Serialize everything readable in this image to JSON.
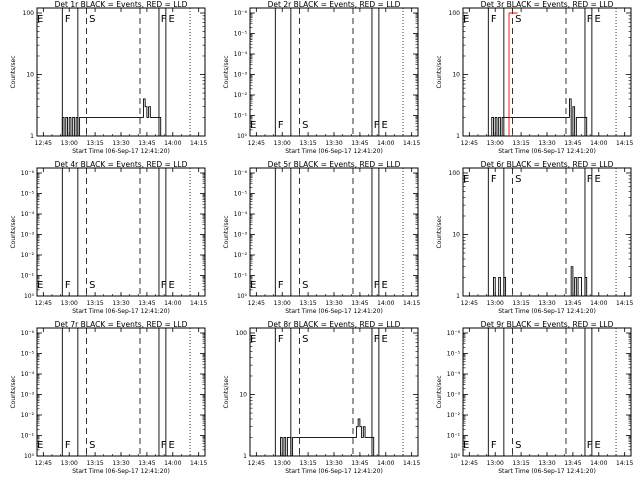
{
  "chart_data": [
    {
      "type": "line",
      "title": "Det 1r BLACK = Events, RED = LLD",
      "xlabel": "Start Time (06-Sep-17 12:41:20)",
      "ylabel": "Counts/sec",
      "x_ticks": [
        "12:45",
        "13:00",
        "13:15",
        "13:30",
        "13:45",
        "14:00",
        "14:15"
      ],
      "y_scale": "log",
      "y_ticks": [
        "1",
        "10",
        "100"
      ],
      "ylim": [
        1,
        100
      ],
      "markers": [
        "E",
        "F",
        "S",
        "F",
        "E"
      ],
      "series": [
        {
          "values": [
            [
              "12:56",
              2
            ],
            [
              "12:57",
              1
            ],
            [
              "12:58",
              2
            ],
            [
              "12:59",
              1
            ],
            [
              "13:00",
              2
            ],
            [
              "13:01",
              1
            ],
            [
              "13:02",
              2
            ],
            [
              "13:03",
              1
            ],
            [
              "13:04",
              2
            ],
            [
              "13:05",
              1
            ],
            [
              "13:06",
              2
            ],
            [
              "13:07",
              2
            ],
            [
              "13:42",
              2
            ],
            [
              "13:43",
              4
            ],
            [
              "13:44",
              3
            ],
            [
              "13:45",
              2
            ],
            [
              "13:46",
              3
            ],
            [
              "13:47",
              2
            ],
            [
              "13:48",
              2
            ],
            [
              "13:50",
              2
            ],
            [
              "13:52",
              2
            ],
            [
              "13:53",
              1
            ]
          ]
        }
      ]
    },
    {
      "type": "line",
      "title": "Det 2r BLACK = Events, RED = LLD",
      "xlabel": "Start Time (06-Sep-17 12:41:20)",
      "ylabel": "Counts/sec",
      "x_ticks": [
        "12:45",
        "13:00",
        "13:15",
        "13:30",
        "13:45",
        "14:00",
        "14:15"
      ],
      "y_scale": "log",
      "y_ticks": [
        "10⁰",
        "10⁻¹",
        "10⁻²",
        "10⁻³",
        "10⁻⁴",
        "10⁻⁵",
        "10⁻⁶"
      ],
      "ylim": [
        1,
        1e-06
      ],
      "markers": [
        "E",
        "F",
        "S",
        "F",
        "E"
      ],
      "series": []
    },
    {
      "type": "line",
      "title": "Det 3r BLACK = Events, RED = LLD",
      "xlabel": "Start Time (06-Sep-17 12:41:20)",
      "ylabel": "Counts/sec",
      "x_ticks": [
        "12:45",
        "13:00",
        "13:15",
        "13:30",
        "13:45",
        "14:00",
        "14:15"
      ],
      "y_scale": "log",
      "y_ticks": [
        "1",
        "10",
        "100"
      ],
      "ylim": [
        1,
        100
      ],
      "markers": [
        "E",
        "F",
        "S",
        "F",
        "E"
      ],
      "series": [
        {
          "values": [
            [
              "12:58",
              2
            ],
            [
              "12:59",
              1
            ],
            [
              "13:00",
              2
            ],
            [
              "13:01",
              1
            ],
            [
              "13:02",
              2
            ],
            [
              "13:03",
              1
            ],
            [
              "13:04",
              2
            ],
            [
              "13:42",
              2
            ],
            [
              "13:43",
              4
            ],
            [
              "13:44",
              1
            ],
            [
              "13:45",
              3
            ],
            [
              "13:46",
              1
            ],
            [
              "13:47",
              2
            ],
            [
              "13:49",
              2
            ],
            [
              "13:52",
              2
            ],
            [
              "13:53",
              1
            ]
          ]
        },
        {
          "color": "#ff0000",
          "values": [
            [
              "13:08",
              100
            ],
            [
              "13:12",
              100
            ]
          ]
        }
      ]
    },
    {
      "type": "line",
      "title": "Det 4r BLACK = Events, RED = LLD",
      "xlabel": "Start Time (06-Sep-17 12:41:20)",
      "ylabel": "Counts/sec",
      "x_ticks": [
        "12:45",
        "13:00",
        "13:15",
        "13:30",
        "13:45",
        "14:00",
        "14:15"
      ],
      "y_scale": "log",
      "y_ticks": [
        "10⁰",
        "10⁻¹",
        "10⁻²",
        "10⁻³",
        "10⁻⁴",
        "10⁻⁵",
        "10⁻⁶"
      ],
      "ylim": [
        1,
        1e-06
      ],
      "markers": [
        "E",
        "F",
        "S",
        "F",
        "E"
      ],
      "series": []
    },
    {
      "type": "line",
      "title": "Det 5r BLACK = Events, RED = LLD",
      "xlabel": "Start Time (06-Sep-17 12:41:20)",
      "ylabel": "Counts/sec",
      "x_ticks": [
        "12:45",
        "13:00",
        "13:15",
        "13:30",
        "13:45",
        "14:00",
        "14:15"
      ],
      "y_scale": "log",
      "y_ticks": [
        "10⁰",
        "10⁻¹",
        "10⁻²",
        "10⁻³",
        "10⁻⁴",
        "10⁻⁵",
        "10⁻⁶"
      ],
      "ylim": [
        1,
        1e-06
      ],
      "markers": [
        "E",
        "F",
        "S",
        "F",
        "E"
      ],
      "series": []
    },
    {
      "type": "line",
      "title": "Det 6r BLACK = Events, RED = LLD",
      "xlabel": "Start Time (06-Sep-17 12:41:20)",
      "ylabel": "Counts/sec",
      "x_ticks": [
        "12:45",
        "13:00",
        "13:15",
        "13:30",
        "13:45",
        "14:00",
        "14:15"
      ],
      "y_scale": "log",
      "y_ticks": [
        "1",
        "10",
        "100"
      ],
      "ylim": [
        1,
        100
      ],
      "markers": [
        "E",
        "F",
        "S",
        "F",
        "E"
      ],
      "series": [
        {
          "values": [
            [
              "12:58",
              1
            ],
            [
              "12:59",
              2
            ],
            [
              "13:00",
              1
            ],
            [
              "13:01",
              1
            ],
            [
              "13:02",
              2
            ],
            [
              "13:03",
              1
            ],
            [
              "13:05",
              2
            ],
            [
              "13:06",
              1
            ],
            [
              "13:43",
              1
            ],
            [
              "13:44",
              3
            ],
            [
              "13:45",
              1
            ],
            [
              "13:46",
              2
            ],
            [
              "13:47",
              1
            ],
            [
              "13:48",
              2
            ],
            [
              "13:50",
              1
            ],
            [
              "13:52",
              2
            ],
            [
              "13:53",
              1
            ]
          ]
        }
      ]
    },
    {
      "type": "line",
      "title": "Det 7r BLACK = Events, RED = LLD",
      "xlabel": "Start Time (06-Sep-17 12:41:20)",
      "ylabel": "Counts/sec",
      "x_ticks": [
        "12:45",
        "13:00",
        "13:15",
        "13:30",
        "13:45",
        "14:00",
        "14:15"
      ],
      "y_scale": "log",
      "y_ticks": [
        "10⁰",
        "10⁻¹",
        "10⁻²",
        "10⁻³",
        "10⁻⁴",
        "10⁻⁵",
        "10⁻⁶"
      ],
      "ylim": [
        1,
        1e-06
      ],
      "markers": [
        "E",
        "F",
        "S",
        "F",
        "E"
      ],
      "series": []
    },
    {
      "type": "line",
      "title": "Det 8r BLACK = Events, RED = LLD",
      "xlabel": "Start Time (06-Sep-17 12:41:20)",
      "ylabel": "Counts/sec",
      "x_ticks": [
        "12:45",
        "13:00",
        "13:15",
        "13:30",
        "13:45",
        "14:00",
        "14:15"
      ],
      "y_scale": "log",
      "y_ticks": [
        "1",
        "10",
        "100"
      ],
      "ylim": [
        1,
        100
      ],
      "markers": [
        "E",
        "F",
        "S",
        "F",
        "E"
      ],
      "series": [
        {
          "values": [
            [
              "12:58",
              1
            ],
            [
              "12:59",
              2
            ],
            [
              "13:00",
              1
            ],
            [
              "13:01",
              2
            ],
            [
              "13:02",
              1
            ],
            [
              "13:03",
              2
            ],
            [
              "13:04",
              2
            ],
            [
              "13:05",
              1
            ],
            [
              "13:06",
              2
            ],
            [
              "13:43",
              3
            ],
            [
              "13:44",
              4
            ],
            [
              "13:45",
              3
            ],
            [
              "13:46",
              2
            ],
            [
              "13:47",
              3
            ],
            [
              "13:48",
              2
            ],
            [
              "13:50",
              2
            ],
            [
              "13:52",
              2
            ],
            [
              "13:53",
              1
            ]
          ]
        }
      ]
    },
    {
      "type": "line",
      "title": "Det 9r BLACK = Events, RED = LLD",
      "xlabel": "Start Time (06-Sep-17 12:41:20)",
      "ylabel": "Counts/sec",
      "x_ticks": [
        "12:45",
        "13:00",
        "13:15",
        "13:30",
        "13:45",
        "14:00",
        "14:15"
      ],
      "y_scale": "log",
      "y_ticks": [
        "10⁰",
        "10⁻¹",
        "10⁻²",
        "10⁻³",
        "10⁻⁴",
        "10⁻⁵",
        "10⁻⁶"
      ],
      "ylim": [
        1,
        1e-06
      ],
      "markers": [
        "E",
        "F",
        "S",
        "F",
        "E"
      ],
      "series": []
    }
  ]
}
